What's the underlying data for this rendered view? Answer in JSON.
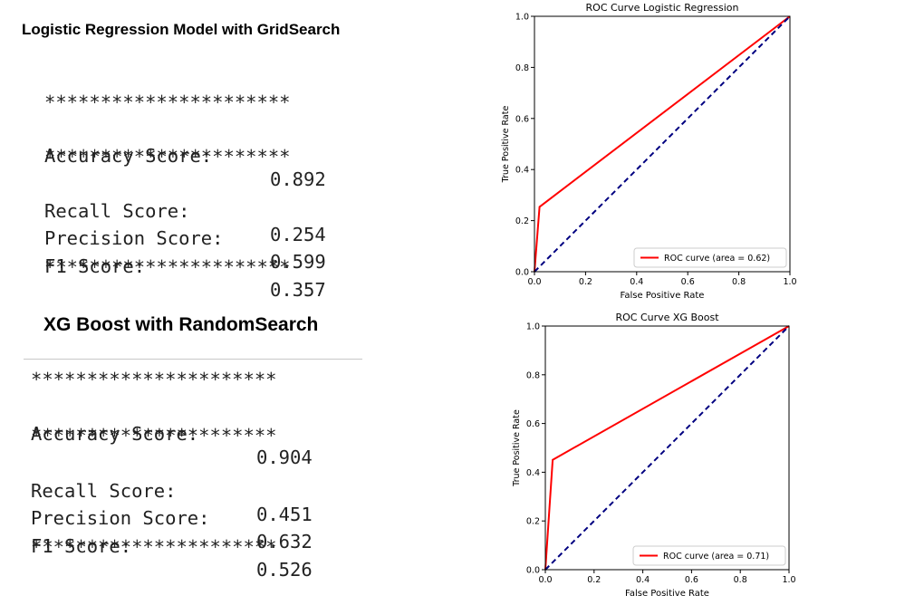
{
  "left_panel": {
    "lr_heading": "Logistic Regression Model with GridSearch",
    "xgb_heading": "XG Boost with RandomSearch",
    "separator": "**********************",
    "lr_metrics": [
      {
        "label": "Accuracy Score:",
        "value": "0.892"
      },
      {
        "label": "Recall Score:",
        "value": "0.254"
      },
      {
        "label": "Precision Score:",
        "value": "0.599"
      },
      {
        "label": "F1 Score:",
        "value": "0.357"
      }
    ],
    "xgb_metrics": [
      {
        "label": "Accuracy Score:",
        "value": "0.904"
      },
      {
        "label": "Recall Score:",
        "value": "0.451"
      },
      {
        "label": "Precision Score:",
        "value": "0.632"
      },
      {
        "label": "F1 Score:",
        "value": "0.526"
      }
    ]
  },
  "chart_data": [
    {
      "type": "line",
      "title": "ROC Curve Logistic Regression",
      "xlabel": "False Positive Rate",
      "ylabel": "True Positive Rate",
      "xlim": [
        0,
        1
      ],
      "ylim": [
        0,
        1
      ],
      "xticks": [
        "0.0",
        "0.2",
        "0.4",
        "0.6",
        "0.8",
        "1.0"
      ],
      "yticks": [
        "0.0",
        "0.2",
        "0.4",
        "0.6",
        "0.8",
        "1.0"
      ],
      "grid": false,
      "legend_position": "bottom-right",
      "series": [
        {
          "name": "ROC curve (area = 0.62)",
          "color": "#ff0000",
          "style": "solid",
          "x": [
            0,
            0.02,
            1
          ],
          "y": [
            0,
            0.254,
            1
          ]
        },
        {
          "color": "#000080",
          "style": "dashed",
          "x": [
            0,
            1
          ],
          "y": [
            0,
            1
          ]
        }
      ]
    },
    {
      "type": "line",
      "title": "ROC Curve XG Boost",
      "xlabel": "False Positive Rate",
      "ylabel": "True Positive Rate",
      "xlim": [
        0,
        1
      ],
      "ylim": [
        0,
        1
      ],
      "xticks": [
        "0.0",
        "0.2",
        "0.4",
        "0.6",
        "0.8",
        "1.0"
      ],
      "yticks": [
        "0.0",
        "0.2",
        "0.4",
        "0.6",
        "0.8",
        "1.0"
      ],
      "grid": false,
      "legend_position": "bottom-right",
      "series": [
        {
          "name": "ROC curve (area = 0.71)",
          "color": "#ff0000",
          "style": "solid",
          "x": [
            0,
            0.03,
            1
          ],
          "y": [
            0,
            0.451,
            1
          ]
        },
        {
          "color": "#000080",
          "style": "dashed",
          "x": [
            0,
            1
          ],
          "y": [
            0,
            1
          ]
        }
      ]
    }
  ]
}
